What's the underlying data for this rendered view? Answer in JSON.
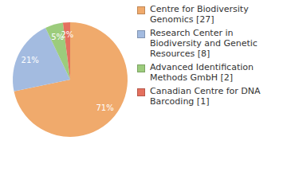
{
  "chart_data": {
    "type": "pie",
    "categories": [
      "Centre for Biodiversity Genomics [27]",
      "Research Center in Biodiversity and Genetic Resources [8]",
      "Advanced Identification Methods GmbH [2]",
      "Canadian Centre for DNA Barcoding [1]"
    ],
    "values": [
      71,
      21,
      5,
      2
    ],
    "value_labels": [
      "71%",
      "21%",
      "5%",
      "2%"
    ],
    "colors": [
      "#f0aa6c",
      "#a3bbe0",
      "#9ccc7c",
      "#e4705e"
    ],
    "data_labels": true,
    "legend": "right"
  }
}
